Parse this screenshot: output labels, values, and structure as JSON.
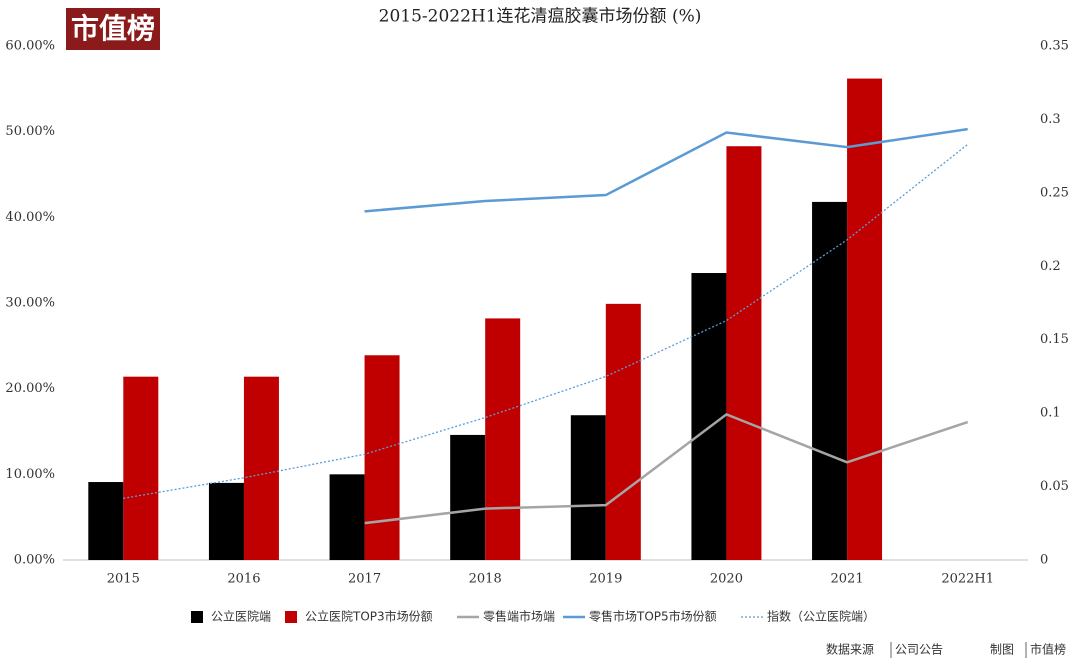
{
  "chart_data": {
    "type": "combo",
    "title": "2015-2022H1连花清瘟胶囊市场份额 (%)",
    "logo": "市值榜",
    "source_label": "数据来源",
    "source": "公司公告",
    "credit_label": "制图",
    "credit": "市值榜",
    "categories": [
      "2015",
      "2016",
      "2017",
      "2018",
      "2019",
      "2020",
      "2021",
      "2022H1"
    ],
    "ylim": [
      0,
      60
    ],
    "yticks": [
      {
        "value": 0,
        "label": "0.00%"
      },
      {
        "value": 10,
        "label": "10.00%"
      },
      {
        "value": 20,
        "label": "20.00%"
      },
      {
        "value": 30,
        "label": "30.00%"
      },
      {
        "value": 40,
        "label": "40.00%"
      },
      {
        "value": 50,
        "label": "50.00%"
      },
      {
        "value": 60,
        "label": "60.00%"
      }
    ],
    "y2lim": [
      0,
      0.35
    ],
    "y2ticks": [
      0,
      0.05,
      0.1,
      0.15,
      0.2,
      0.25,
      0.3,
      0.35
    ],
    "grid": false,
    "legend": "bottom",
    "series": [
      {
        "name": "公立医院端",
        "type": "bar",
        "color": "#000000",
        "values": [
          9.1,
          9.0,
          10.0,
          14.6,
          16.9,
          33.5,
          41.8,
          null
        ]
      },
      {
        "name": "公立医院TOP3市场份额",
        "type": "bar",
        "color": "#c00000",
        "values": [
          21.4,
          21.4,
          23.9,
          28.2,
          29.9,
          48.3,
          56.2,
          null
        ]
      },
      {
        "name": "零售端市场端",
        "type": "line",
        "color": "#a5a5a5",
        "values": [
          null,
          null,
          4.3,
          6.0,
          6.4,
          17.0,
          11.4,
          16.1
        ]
      },
      {
        "name": "零售市场TOP5市场份额",
        "type": "line",
        "color": "#5b9bd5",
        "values": [
          null,
          null,
          40.7,
          41.9,
          42.6,
          49.9,
          48.2,
          50.3
        ]
      },
      {
        "name": "指数（公立医院端）",
        "type": "line",
        "style": "dotted",
        "axis": "y2",
        "color": "#5b9bd5",
        "values": [
          0.042,
          0.056,
          0.072,
          0.097,
          0.125,
          0.163,
          0.218,
          0.283
        ]
      }
    ]
  }
}
